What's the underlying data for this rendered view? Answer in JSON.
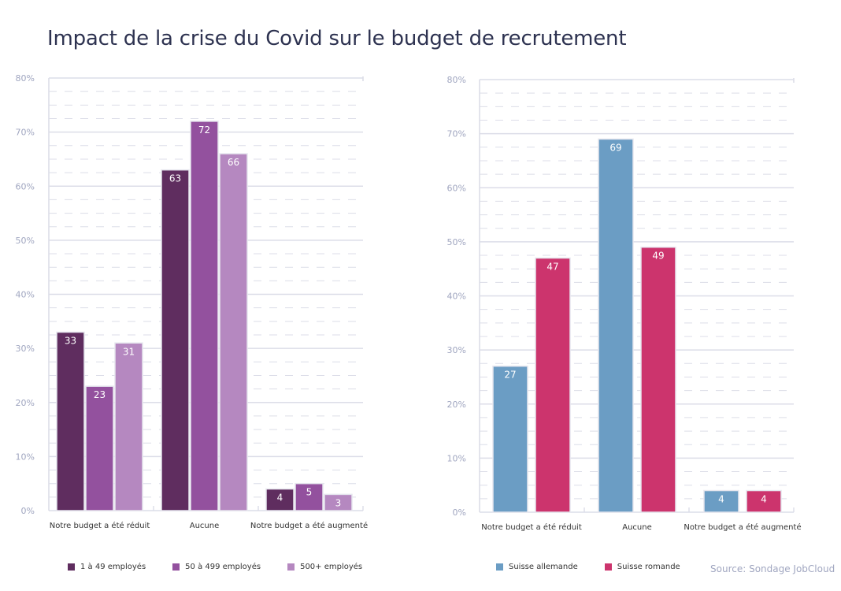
{
  "title": "Impact de la crise du Covid sur le budget de recrutement",
  "source": "Source: Sondage JobCloud",
  "chart_data": [
    {
      "type": "bar",
      "categories": [
        "Notre budget a été réduit",
        "Aucune",
        "Notre budget a été augmenté"
      ],
      "ylim": [
        0,
        80
      ],
      "yticks": [
        "0%",
        "10%",
        "20%",
        "30%",
        "40%",
        "50%",
        "60%",
        "70%",
        "80%"
      ],
      "series": [
        {
          "name": "1 à 49 employés",
          "values": [
            33,
            63,
            4
          ],
          "color": "#5f2d5f"
        },
        {
          "name": "50 à 499 employés",
          "values": [
            23,
            72,
            5
          ],
          "color": "#93519e"
        },
        {
          "name": "500+ employés",
          "values": [
            31,
            66,
            3
          ],
          "color": "#b588c0"
        }
      ],
      "legend_position": "bottom"
    },
    {
      "type": "bar",
      "categories": [
        "Notre budget a été réduit",
        "Aucune",
        "Notre budget a été augmenté"
      ],
      "ylim": [
        0,
        80
      ],
      "yticks": [
        "0%",
        "10%",
        "20%",
        "30%",
        "40%",
        "50%",
        "60%",
        "70%",
        "80%"
      ],
      "series": [
        {
          "name": "Suisse allemande",
          "values": [
            27,
            69,
            4
          ],
          "color": "#6b9dc4"
        },
        {
          "name": "Suisse romande",
          "values": [
            47,
            49,
            4
          ],
          "color": "#cc346d"
        }
      ],
      "legend_position": "bottom"
    }
  ]
}
